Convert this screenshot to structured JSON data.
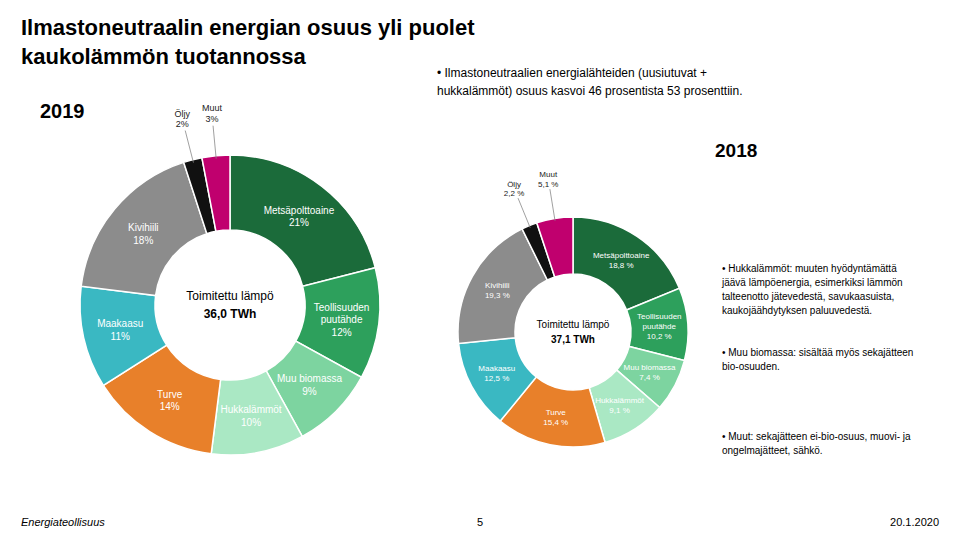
{
  "title": "Ilmastoneutraalin energian osuus yli puolet\nkaukolämmön tuotannossa",
  "annotations": [
    "• Ilmastoneutraalien energialähteiden (uusiutuvat +\nhukkalämmöt) osuus kasvoi 46 prosentista 53 prosenttiin.",
    "• Hukkalämmöt: muuten hyödyntämättä\njäävä lämpöenergia, esimerkiksi lämmön\ntalteenotto jätevedestä, savukaasuista,\nkaukojäähdytyksen paluuvedestä.",
    "• Muu biomassa: sisältää myös sekajätteen\nbio-osuuden.",
    "• Muut: sekajätteen ei-bio-osuus, muovi- ja\nongelmajätteet, sähkö.",
    "Energiateollisuus",
    "5",
    "20.1.2020"
  ],
  "chart_data": [
    {
      "type": "pie",
      "title": "2019",
      "annotations": [
        "Toimitettu lämpö",
        "36,0 TWh"
      ],
      "categories": [
        "Metsäpolttoaine",
        "Teollisuuden\npuutähde",
        "Muu biomassa",
        "Hukkalämmöt",
        "Turve",
        "Maakaasu",
        "Kivihiili",
        "Öljy",
        "Muut"
      ],
      "values": [
        21,
        12,
        9,
        10,
        14,
        11,
        18,
        2,
        3
      ],
      "value_labels": [
        "21%",
        "12%",
        "9%",
        "10%",
        "14%",
        "11%",
        "18%",
        "2%",
        "3%"
      ],
      "colors": [
        "#1b6b3a",
        "#2da05c",
        "#7dd4a0",
        "#aae8c4",
        "#e8802a",
        "#3ab8c2",
        "#8c8c8c",
        "#111111",
        "#c0006e"
      ],
      "data_labels": true
    },
    {
      "type": "pie",
      "title": "2018",
      "annotations": [
        "Toimitettu lämpö",
        "37,1 TWh"
      ],
      "categories": [
        "Metsäpolttoaine",
        "Teollisuuden\npuutähde",
        "Muu biomassa",
        "Hukkalämmöt",
        "Turve",
        "Maakaasu",
        "Kivihiili",
        "Öljy",
        "Muut"
      ],
      "values": [
        18.8,
        10.2,
        7.4,
        9.1,
        15.4,
        12.5,
        19.3,
        2.2,
        5.1
      ],
      "value_labels": [
        "18,8 %",
        "10,2 %",
        "7,4 %",
        "9,1 %",
        "15,4 %",
        "12,5 %",
        "19,3 %",
        "2,2 %",
        "5,1 %"
      ],
      "colors": [
        "#1b6b3a",
        "#2da05c",
        "#7dd4a0",
        "#aae8c4",
        "#e8802a",
        "#3ab8c2",
        "#8c8c8c",
        "#111111",
        "#c0006e"
      ],
      "data_labels": true
    }
  ]
}
